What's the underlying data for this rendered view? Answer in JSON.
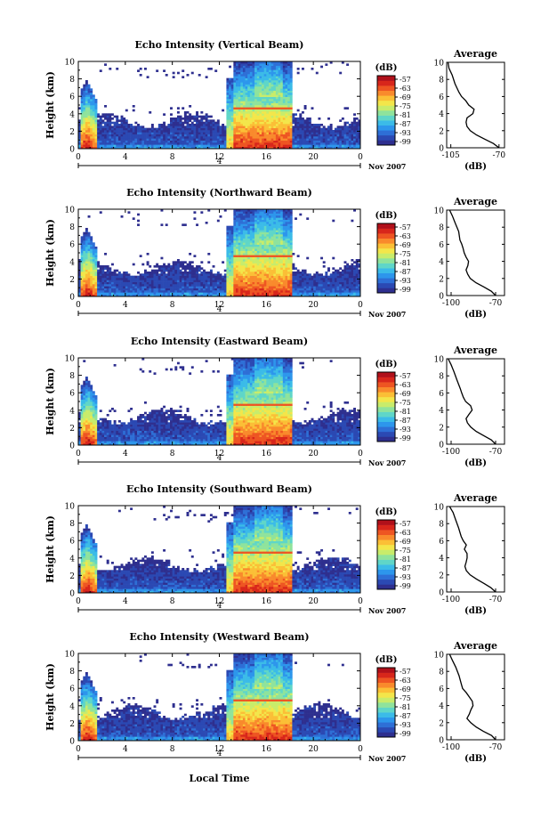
{
  "figure": {
    "date_label": "Nov 2007",
    "xlabel_bottom": "Local Time",
    "colorbar_unit": "(dB)",
    "colorbar_ticks": [
      "-57",
      "-63",
      "-69",
      "-75",
      "-81",
      "-87",
      "-93",
      "-99"
    ],
    "colors": [
      "#2e2f8f",
      "#2b49b3",
      "#2e6fd6",
      "#2d96ec",
      "#3bbbe8",
      "#5fd6c8",
      "#8fe39c",
      "#c8ec6b",
      "#f3e64a",
      "#fbbf36",
      "#f98a2c",
      "#ee5522",
      "#d8261b",
      "#b0101a"
    ]
  },
  "chart_data": [
    {
      "type": "heatmap",
      "title": "Echo Intensity (Vertical Beam)",
      "ylabel": "Height (km)",
      "xlabel": "Local Time",
      "x_ticks": [
        "0",
        "4",
        "8",
        "12",
        "16",
        "20",
        "0"
      ],
      "y_ticks": [
        "0",
        "2",
        "4",
        "6",
        "8",
        "10"
      ],
      "xlim": [
        0,
        24
      ],
      "ylim": [
        0,
        10
      ],
      "date_marker": "4",
      "colorbar": {
        "unit": "(dB)",
        "ticks": [
          "-57",
          "-63",
          "-69",
          "-75",
          "-81",
          "-87",
          "-93",
          "-99"
        ]
      },
      "profile": {
        "type": "line",
        "title": "Average",
        "xlabel": "(dB)",
        "x_ticks": [
          "-105",
          "-70"
        ],
        "y_ticks": [
          "0",
          "2",
          "4",
          "6",
          "8",
          "10"
        ],
        "xlim": [
          -108,
          -66
        ],
        "ylim": [
          0,
          10
        ],
        "x": [
          -70,
          -74,
          -80,
          -86,
          -91,
          -93,
          -94,
          -93,
          -89,
          -88,
          -92,
          -94,
          -97,
          -99,
          -102,
          -104,
          -106,
          -107
        ],
        "y": [
          0,
          0.5,
          1,
          1.5,
          2,
          2.5,
          3,
          3.5,
          4,
          4.5,
          5,
          5.5,
          6,
          6.5,
          7.5,
          8.5,
          9.3,
          10
        ]
      }
    },
    {
      "type": "heatmap",
      "title": "Echo Intensity (Northward Beam)",
      "ylabel": "Height (km)",
      "xlabel": "Local Time",
      "x_ticks": [
        "0",
        "4",
        "8",
        "12",
        "16",
        "20",
        "0"
      ],
      "y_ticks": [
        "0",
        "2",
        "4",
        "6",
        "8",
        "10"
      ],
      "xlim": [
        0,
        24
      ],
      "ylim": [
        0,
        10
      ],
      "date_marker": "4",
      "colorbar": {
        "unit": "(dB)",
        "ticks": [
          "-57",
          "-63",
          "-69",
          "-75",
          "-81",
          "-87",
          "-93",
          "-99"
        ]
      },
      "profile": {
        "type": "line",
        "title": "Average",
        "xlabel": "(dB)",
        "x_ticks": [
          "-100",
          "-70"
        ],
        "y_ticks": [
          "0",
          "2",
          "4",
          "6",
          "8",
          "10"
        ],
        "xlim": [
          -103,
          -64
        ],
        "ylim": [
          0,
          10
        ],
        "x": [
          -70,
          -73,
          -78,
          -83,
          -87,
          -89,
          -90,
          -89,
          -88,
          -90,
          -91,
          -92,
          -93,
          -94,
          -95,
          -97,
          -99,
          -101
        ],
        "y": [
          0,
          0.5,
          1,
          1.5,
          2,
          2.5,
          3,
          3.5,
          4,
          4.5,
          5,
          5.5,
          6,
          6.5,
          7.5,
          8.5,
          9.3,
          10
        ]
      }
    },
    {
      "type": "heatmap",
      "title": "Echo Intensity (Eastward Beam)",
      "ylabel": "Height (km)",
      "xlabel": "Local Time",
      "x_ticks": [
        "0",
        "4",
        "8",
        "12",
        "16",
        "20",
        "0"
      ],
      "y_ticks": [
        "0",
        "2",
        "4",
        "6",
        "8",
        "10"
      ],
      "xlim": [
        0,
        24
      ],
      "ylim": [
        0,
        10
      ],
      "date_marker": "4",
      "colorbar": {
        "unit": "(dB)",
        "ticks": [
          "-57",
          "-63",
          "-69",
          "-75",
          "-81",
          "-87",
          "-93",
          "-99"
        ]
      },
      "profile": {
        "type": "line",
        "title": "Average",
        "xlabel": "(dB)",
        "x_ticks": [
          "-100",
          "-70"
        ],
        "y_ticks": [
          "0",
          "2",
          "4",
          "6",
          "8",
          "10"
        ],
        "xlim": [
          -103,
          -64
        ],
        "ylim": [
          0,
          10
        ],
        "x": [
          -70,
          -73,
          -78,
          -83,
          -87,
          -89,
          -90,
          -88,
          -86,
          -87,
          -90,
          -92,
          -93,
          -94,
          -96,
          -98,
          -100,
          -102
        ],
        "y": [
          0,
          0.5,
          1,
          1.5,
          2,
          2.5,
          3,
          3.5,
          4,
          4.5,
          5,
          5.5,
          6,
          6.5,
          7.5,
          8.5,
          9.3,
          10
        ]
      }
    },
    {
      "type": "heatmap",
      "title": "Echo Intensity (Southward Beam)",
      "ylabel": "Height (km)",
      "xlabel": "Local Time",
      "x_ticks": [
        "0",
        "4",
        "8",
        "12",
        "16",
        "20",
        "0"
      ],
      "y_ticks": [
        "0",
        "2",
        "4",
        "6",
        "8",
        "10"
      ],
      "xlim": [
        0,
        24
      ],
      "ylim": [
        0,
        10
      ],
      "date_marker": "4",
      "colorbar": {
        "unit": "(dB)",
        "ticks": [
          "-57",
          "-63",
          "-69",
          "-75",
          "-81",
          "-87",
          "-93",
          "-99"
        ]
      },
      "profile": {
        "type": "line",
        "title": "Average",
        "xlabel": "(dB)",
        "x_ticks": [
          "-100",
          "-70"
        ],
        "y_ticks": [
          "0",
          "2",
          "4",
          "6",
          "8",
          "10"
        ],
        "xlim": [
          -103,
          -64
        ],
        "ylim": [
          0,
          10
        ],
        "x": [
          -70,
          -73,
          -78,
          -83,
          -87,
          -90,
          -91,
          -90,
          -89,
          -89,
          -91,
          -90,
          -92,
          -93,
          -95,
          -97,
          -99,
          -101
        ],
        "y": [
          0,
          0.5,
          1,
          1.5,
          2,
          2.5,
          3,
          3.5,
          4,
          4.5,
          5,
          5.5,
          6,
          6.5,
          7.5,
          8.5,
          9.3,
          10
        ]
      }
    },
    {
      "type": "heatmap",
      "title": "Echo Intensity (Westward Beam)",
      "ylabel": "Height (km)",
      "xlabel": "Local Time",
      "x_ticks": [
        "0",
        "4",
        "8",
        "12",
        "16",
        "20",
        "0"
      ],
      "y_ticks": [
        "0",
        "2",
        "4",
        "6",
        "8",
        "10"
      ],
      "xlim": [
        0,
        24
      ],
      "ylim": [
        0,
        10
      ],
      "date_marker": "4",
      "colorbar": {
        "unit": "(dB)",
        "ticks": [
          "-57",
          "-63",
          "-69",
          "-75",
          "-81",
          "-87",
          "-93",
          "-99"
        ]
      },
      "profile": {
        "type": "line",
        "title": "Average",
        "xlabel": "(dB)",
        "x_ticks": [
          "-100",
          "-70"
        ],
        "y_ticks": [
          "0",
          "2",
          "4",
          "6",
          "8",
          "10"
        ],
        "xlim": [
          -103,
          -64
        ],
        "ylim": [
          0,
          10
        ],
        "x": [
          -70,
          -73,
          -78,
          -83,
          -87,
          -89,
          -88,
          -87,
          -85,
          -86,
          -88,
          -90,
          -92,
          -93,
          -95,
          -97,
          -99,
          -101
        ],
        "y": [
          0,
          0.5,
          1,
          1.5,
          2,
          2.5,
          3,
          3.5,
          4,
          4.5,
          5,
          5.5,
          6,
          6.5,
          7.5,
          8.5,
          9.3,
          10
        ]
      }
    }
  ]
}
